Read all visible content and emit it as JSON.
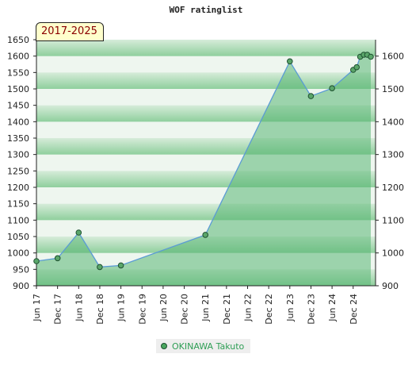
{
  "chart_data": {
    "type": "area",
    "title": "WOF ratinglist",
    "period_label": "2017-2025",
    "x_tick_labels": [
      "Jun 17",
      "Dec 17",
      "Jun 18",
      "Dec 18",
      "Jun 19",
      "Dec 19",
      "Jun 20",
      "Dec 20",
      "Jun 21",
      "Dec 21",
      "Jun 22",
      "Dec 22",
      "Jun 23",
      "Dec 23",
      "Jun 24",
      "Dec 24"
    ],
    "y_left_ticks": [
      900,
      950,
      1000,
      1050,
      1100,
      1150,
      1200,
      1250,
      1300,
      1350,
      1400,
      1450,
      1500,
      1550,
      1600,
      1650
    ],
    "y_right_ticks": [
      900,
      1000,
      1100,
      1200,
      1300,
      1400,
      1500,
      1600
    ],
    "ylim": [
      900,
      1650
    ],
    "grid": "horizontal color bands",
    "legend_position": "bottom",
    "series": [
      {
        "name": "OKINAWA Takuto",
        "points": [
          {
            "x": "2017-06",
            "y": 975
          },
          {
            "x": "2017-12",
            "y": 984
          },
          {
            "x": "2018-06",
            "y": 1062
          },
          {
            "x": "2018-12",
            "y": 957
          },
          {
            "x": "2019-06",
            "y": 962
          },
          {
            "x": "2021-06",
            "y": 1055
          },
          {
            "x": "2023-06",
            "y": 1584
          },
          {
            "x": "2023-12",
            "y": 1478
          },
          {
            "x": "2024-06",
            "y": 1502
          },
          {
            "x": "2024-12",
            "y": 1558
          },
          {
            "x": "2025-01",
            "y": 1566
          },
          {
            "x": "2025-02",
            "y": 1598
          },
          {
            "x": "2025-03",
            "y": 1604
          },
          {
            "x": "2025-04",
            "y": 1604
          },
          {
            "x": "2025-05",
            "y": 1598
          }
        ]
      }
    ]
  },
  "colors": {
    "area_fill": "#5ab675",
    "line": "#5b9bd5",
    "marker_fill": "#5aa66a",
    "marker_stroke": "#1e5030",
    "band_light": "#eef6ef",
    "band_dark": "#8fcf9d",
    "legend_text": "#2e9e55",
    "badge_text": "#8b0000"
  }
}
